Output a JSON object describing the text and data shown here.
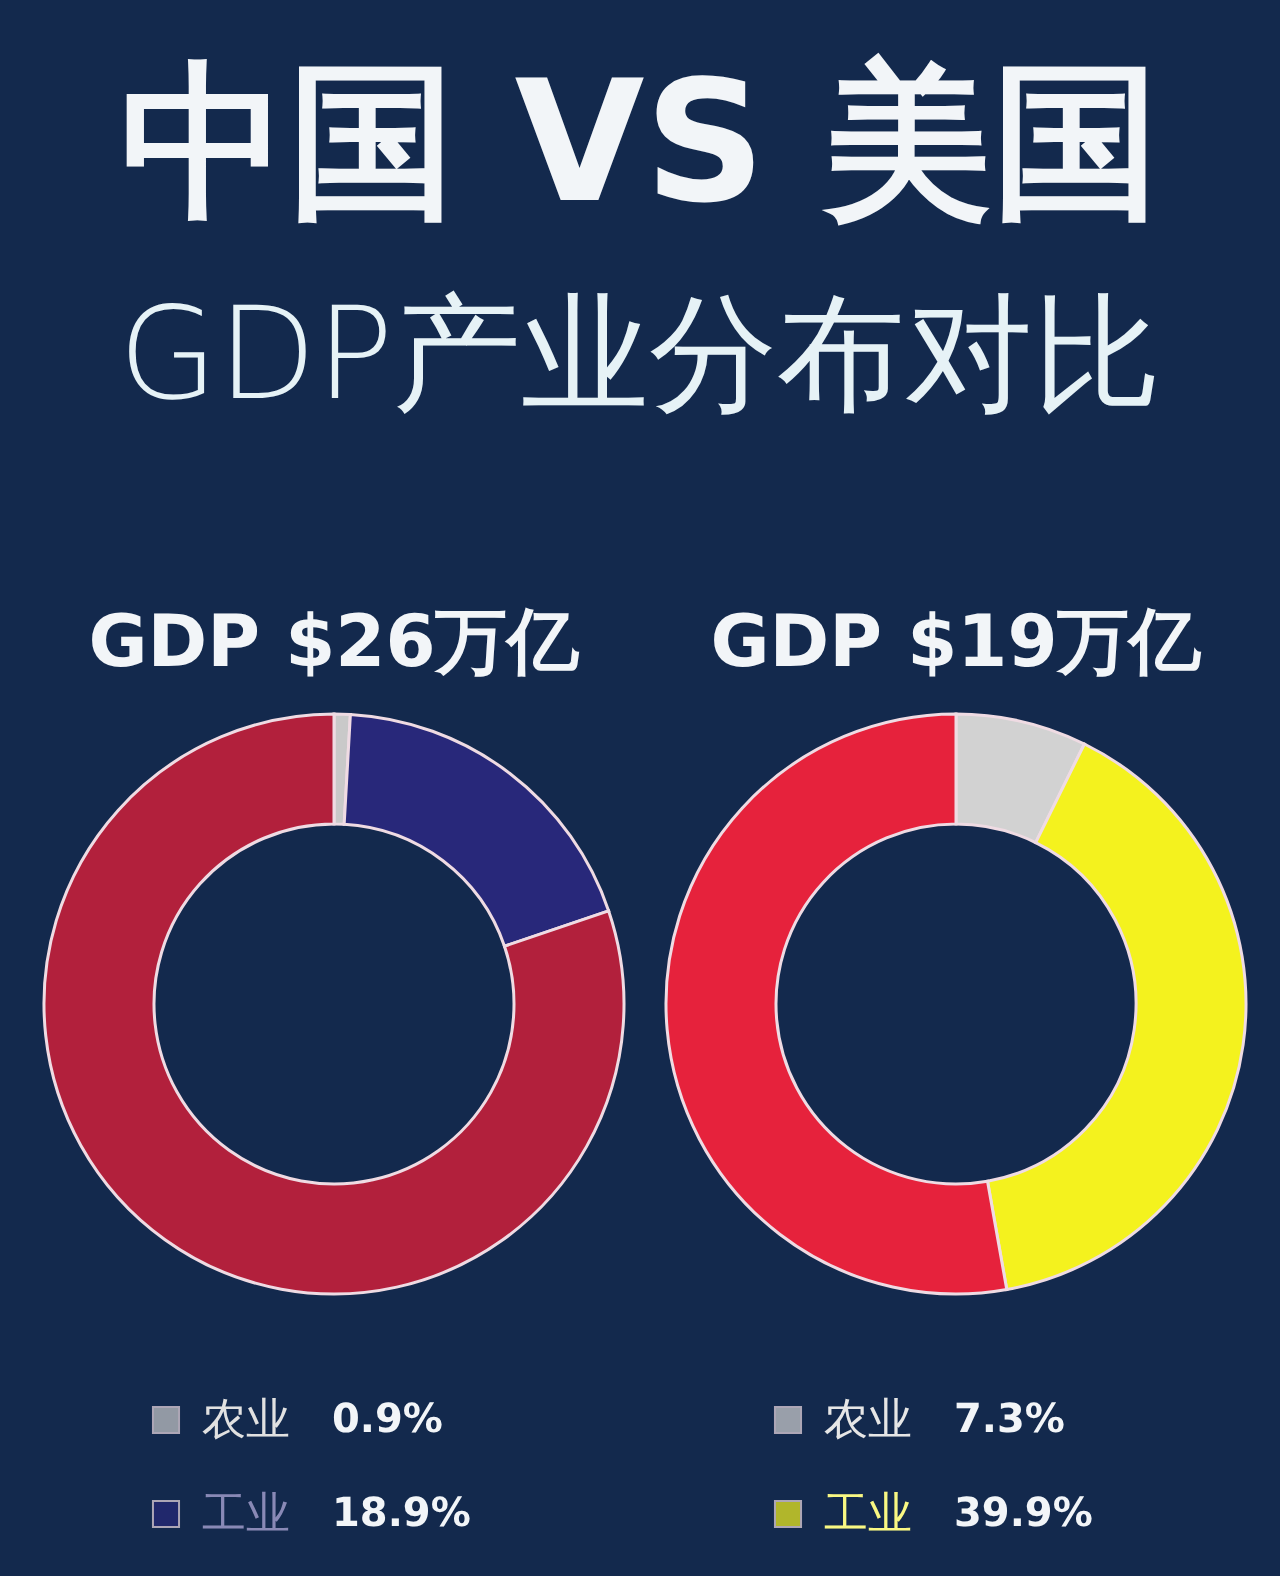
{
  "chart_data": [
    {
      "type": "other",
      "title": "中国 VS 美国",
      "subtitle": "GDP产业分布对比"
    },
    {
      "type": "donut",
      "title": "GDP $26万亿",
      "categories": [
        "农业",
        "工业",
        null
      ],
      "values": [
        0.9,
        18.9,
        80.2
      ],
      "colors": [
        "#c9c9c9",
        "#28287a",
        "#b2203c"
      ],
      "value_labels": [
        "0.9%",
        "18.9%",
        null
      ],
      "legend": "bottom"
    },
    {
      "type": "donut",
      "title": "GDP $19万亿",
      "categories": [
        "农业",
        "工业",
        null
      ],
      "values": [
        7.3,
        39.9,
        52.8
      ],
      "colors": [
        "#d2d2d2",
        "#f4f21e",
        "#e6223c"
      ],
      "value_labels": [
        "7.3%",
        "39.9%",
        null
      ],
      "legend": "bottom"
    }
  ]
}
